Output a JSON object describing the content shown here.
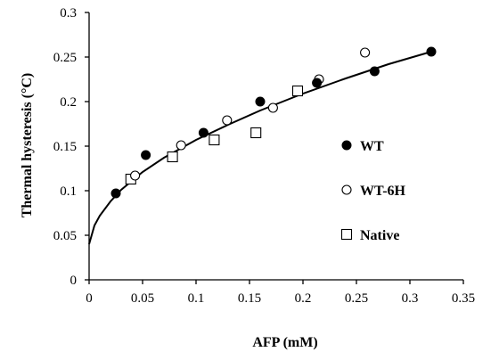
{
  "chart_data": {
    "type": "scatter",
    "xlabel": "AFP (mM)",
    "ylabel": "Thermal hysteresis (°C)",
    "xlim": [
      0,
      0.35
    ],
    "ylim": [
      0,
      0.3
    ],
    "x_ticks": [
      "0",
      "0.05",
      "0.1",
      "0.15",
      "0.2",
      "0.25",
      "0.3",
      "0.35"
    ],
    "y_ticks": [
      "0",
      "0.05",
      "0.1",
      "0.15",
      "0.2",
      "0.25",
      "0.3"
    ],
    "x_tick_values": [
      0,
      0.05,
      0.1,
      0.15,
      0.2,
      0.25,
      0.3,
      0.35
    ],
    "y_tick_values": [
      0,
      0.05,
      0.1,
      0.15,
      0.2,
      0.25,
      0.3
    ],
    "grid": false,
    "legend_position": "right",
    "series": [
      {
        "name": "WT",
        "marker": "filled-circle",
        "x": [
          0.025,
          0.053,
          0.107,
          0.16,
          0.213,
          0.267,
          0.32
        ],
        "y": [
          0.097,
          0.14,
          0.165,
          0.2,
          0.221,
          0.234,
          0.256
        ]
      },
      {
        "name": "WT-6H",
        "marker": "open-circle",
        "x": [
          0.043,
          0.086,
          0.129,
          0.172,
          0.215,
          0.258
        ],
        "y": [
          0.117,
          0.151,
          0.179,
          0.193,
          0.225,
          0.255
        ]
      },
      {
        "name": "Native",
        "marker": "open-square",
        "x": [
          0.039,
          0.078,
          0.117,
          0.156,
          0.195
        ],
        "y": [
          0.113,
          0.138,
          0.157,
          0.165,
          0.212
        ]
      }
    ],
    "fit_curve": {
      "x": [
        0,
        0.005,
        0.01,
        0.02,
        0.03,
        0.05,
        0.07,
        0.1,
        0.13,
        0.16,
        0.2,
        0.24,
        0.28,
        0.32
      ],
      "y": [
        0.04,
        0.061,
        0.072,
        0.088,
        0.101,
        0.121,
        0.137,
        0.157,
        0.174,
        0.19,
        0.209,
        0.226,
        0.242,
        0.256
      ]
    },
    "colors": {
      "axis": "#000000",
      "marker": "#000000",
      "background": "#ffffff"
    }
  }
}
